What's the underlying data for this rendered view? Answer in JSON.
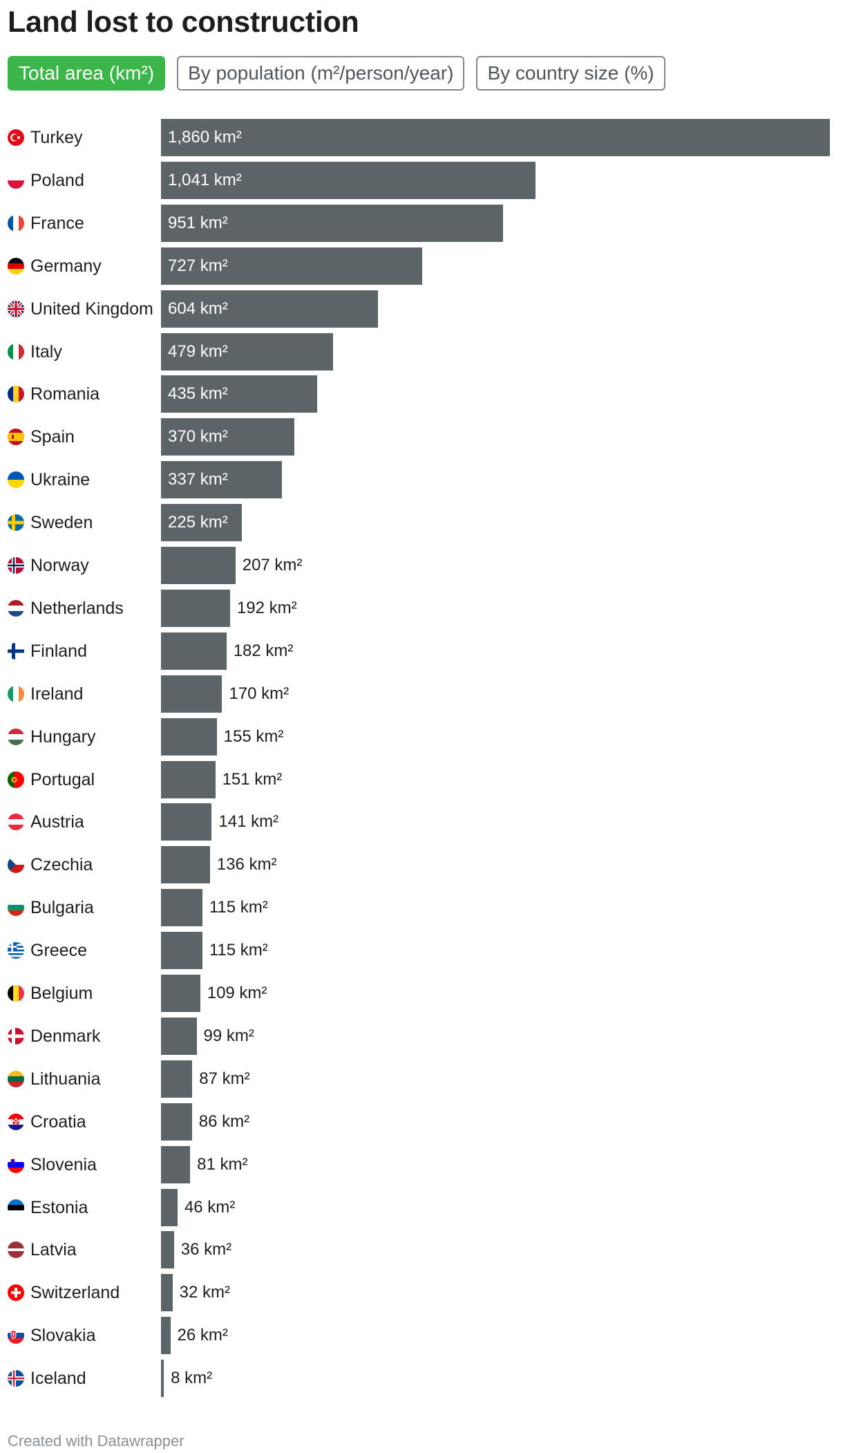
{
  "title": "Land lost to construction",
  "tabs": [
    {
      "label": "Total area (km²)",
      "active": true
    },
    {
      "label": "By population (m²/person/year)",
      "active": false
    },
    {
      "label": "By country size (%)",
      "active": false
    }
  ],
  "footer": "Created with Datawrapper",
  "colors": {
    "bar": "#5d6468",
    "active_tab": "#3cb54a"
  },
  "chart_data": {
    "type": "bar",
    "orientation": "horizontal",
    "value_suffix": " km²",
    "categories": [
      "Turkey",
      "Poland",
      "France",
      "Germany",
      "United Kingdom",
      "Italy",
      "Romania",
      "Spain",
      "Ukraine",
      "Sweden",
      "Norway",
      "Netherlands",
      "Finland",
      "Ireland",
      "Hungary",
      "Portugal",
      "Austria",
      "Czechia",
      "Bulgaria",
      "Greece",
      "Belgium",
      "Denmark",
      "Lithuania",
      "Croatia",
      "Slovenia",
      "Estonia",
      "Latvia",
      "Switzerland",
      "Slovakia",
      "Iceland"
    ],
    "values": [
      1860,
      1041,
      951,
      727,
      604,
      479,
      435,
      370,
      337,
      225,
      207,
      192,
      182,
      170,
      155,
      151,
      141,
      136,
      115,
      115,
      109,
      99,
      87,
      86,
      81,
      46,
      36,
      32,
      26,
      8
    ],
    "value_labels": [
      "1,860 km²",
      "1,041 km²",
      "951 km²",
      "727 km²",
      "604 km²",
      "479 km²",
      "435 km²",
      "370 km²",
      "337 km²",
      "225 km²",
      "207 km²",
      "192 km²",
      "182 km²",
      "170 km²",
      "155 km²",
      "151 km²",
      "141 km²",
      "136 km²",
      "115 km²",
      "115 km²",
      "109 km²",
      "99 km²",
      "87 km²",
      "86 km²",
      "81 km²",
      "46 km²",
      "36 km²",
      "32 km²",
      "26 km²",
      "8 km²"
    ],
    "flags": [
      "turkey-flag-icon",
      "poland-flag-icon",
      "france-flag-icon",
      "germany-flag-icon",
      "united-kingdom-flag-icon",
      "italy-flag-icon",
      "romania-flag-icon",
      "spain-flag-icon",
      "ukraine-flag-icon",
      "sweden-flag-icon",
      "norway-flag-icon",
      "netherlands-flag-icon",
      "finland-flag-icon",
      "ireland-flag-icon",
      "hungary-flag-icon",
      "portugal-flag-icon",
      "austria-flag-icon",
      "czechia-flag-icon",
      "bulgaria-flag-icon",
      "greece-flag-icon",
      "belgium-flag-icon",
      "denmark-flag-icon",
      "lithuania-flag-icon",
      "croatia-flag-icon",
      "slovenia-flag-icon",
      "estonia-flag-icon",
      "latvia-flag-icon",
      "switzerland-flag-icon",
      "slovakia-flag-icon",
      "iceland-flag-icon"
    ],
    "xlim": [
      0,
      1860
    ],
    "grid": false,
    "legend": "none"
  }
}
